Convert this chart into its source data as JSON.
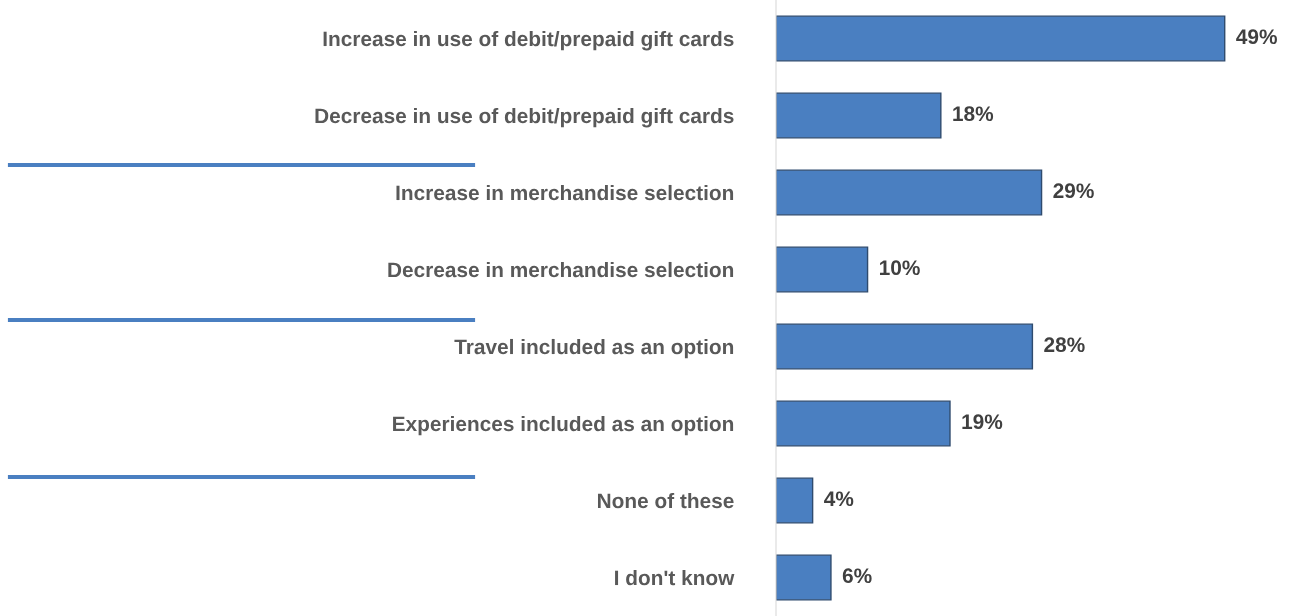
{
  "chart_data": {
    "type": "bar",
    "orientation": "horizontal",
    "categories": [
      "Increase in use of debit/prepaid gift cards",
      "Decrease in use of debit/prepaid gift cards",
      "Increase in merchandise selection",
      "Decrease in merchandise selection",
      "Travel included as an option",
      "Experiences included as an option",
      "None of these",
      "I don't know"
    ],
    "values": [
      49,
      18,
      29,
      10,
      28,
      19,
      4,
      6
    ],
    "value_labels": [
      "49%",
      "18%",
      "29%",
      "10%",
      "28%",
      "19%",
      "4%",
      "6%"
    ],
    "color": "#4a7fc1",
    "grid": false,
    "legend": false
  }
}
